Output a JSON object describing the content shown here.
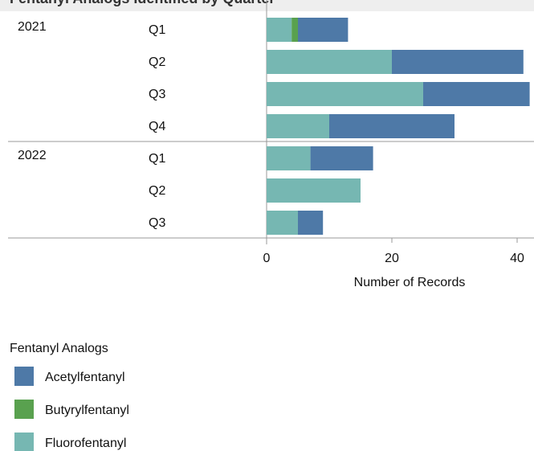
{
  "header": {
    "title": "Fentanyl Analogs Identified by Quarter"
  },
  "chart_data": {
    "type": "bar",
    "orientation": "horizontal",
    "stacked": true,
    "xlabel": "Number of Records",
    "xlim": [
      0,
      43
    ],
    "xticks": [
      0,
      20,
      40
    ],
    "groups": [
      {
        "year": "2021",
        "quarters": [
          "Q1",
          "Q2",
          "Q3",
          "Q4"
        ]
      },
      {
        "year": "2022",
        "quarters": [
          "Q1",
          "Q2",
          "Q3"
        ]
      }
    ],
    "categories": [
      "2021 Q1",
      "2021 Q2",
      "2021 Q3",
      "2021 Q4",
      "2022 Q1",
      "2022 Q2",
      "2022 Q3"
    ],
    "series": [
      {
        "name": "Fluorofentanyl",
        "color": "#76b7b2",
        "values": [
          4,
          20,
          25,
          10,
          7,
          15,
          5
        ]
      },
      {
        "name": "Butyrylfentanyl",
        "color": "#59a14f",
        "values": [
          1,
          0,
          0,
          0,
          0,
          0,
          0
        ]
      },
      {
        "name": "Acetylfentanyl",
        "color": "#4e79a7",
        "values": [
          8,
          21,
          17,
          20,
          10,
          0,
          4
        ]
      }
    ],
    "legend": {
      "title": "Fentanyl Analogs",
      "position": "bottom-left",
      "items": [
        {
          "name": "Acetylfentanyl",
          "color": "#4e79a7"
        },
        {
          "name": "Butyrylfentanyl",
          "color": "#59a14f"
        },
        {
          "name": "Fluorofentanyl",
          "color": "#76b7b2"
        }
      ]
    },
    "grid": false
  }
}
